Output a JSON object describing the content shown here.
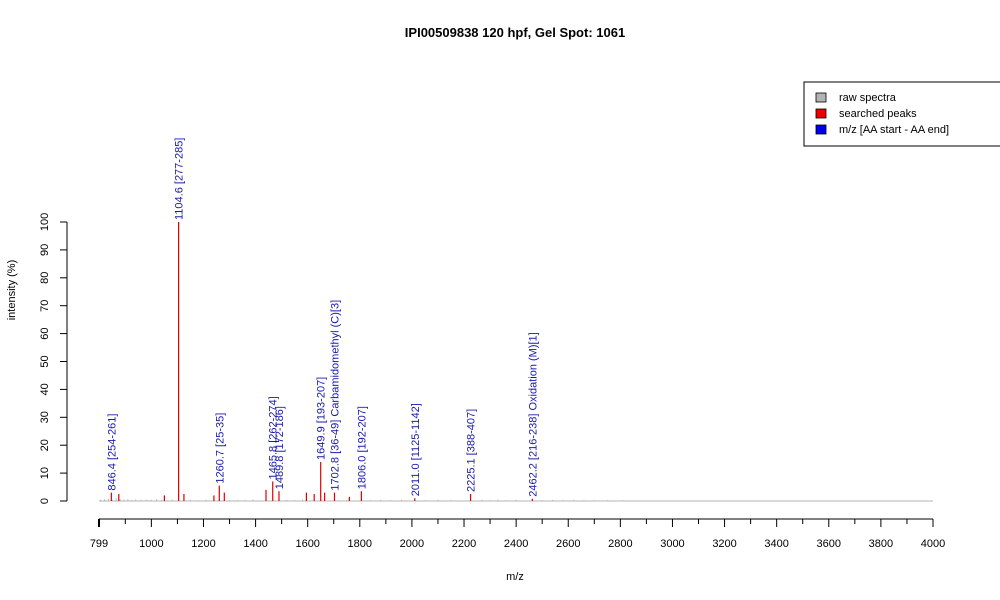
{
  "chart_data": {
    "type": "bar",
    "title": "IPI00509838  120 hpf, Gel Spot: 1061",
    "xlabel": "m/z",
    "ylabel": "intensity (%)",
    "xlim": [
      799,
      4000
    ],
    "ylim": [
      0,
      100
    ],
    "x_ticks": [
      799,
      1000,
      1200,
      1400,
      1600,
      1800,
      2000,
      2200,
      2400,
      2600,
      2800,
      3000,
      3200,
      3400,
      3600,
      3800,
      4000
    ],
    "y_ticks": [
      0,
      10,
      20,
      30,
      40,
      50,
      60,
      70,
      80,
      90,
      100
    ],
    "colors": {
      "raw": "#b4b4b4",
      "searched": "#dd0000",
      "annotation": "#1a1aaa",
      "axis": "#000000"
    },
    "legend": {
      "position": "top-right",
      "entries": [
        {
          "label": "raw spectra",
          "color": "#b4b4b4"
        },
        {
          "label": "searched peaks",
          "color": "#ee0000"
        },
        {
          "label": "m/z [AA start - AA end]",
          "color": "#0000ee"
        }
      ]
    },
    "series": [
      {
        "name": "raw spectra",
        "x": [
          805,
          820,
          835,
          850,
          865,
          880,
          895,
          910,
          925,
          940,
          960,
          980,
          1000,
          1020,
          1040,
          1060,
          1080,
          1150,
          1180,
          1210,
          1300,
          1330,
          1360,
          1390,
          1520,
          1550,
          1580,
          1720,
          1750,
          1840,
          1880,
          1920,
          1960,
          2050,
          2100,
          2150,
          2270,
          2300,
          2330,
          2360,
          2400,
          2500,
          2540,
          2580,
          2620,
          2660,
          2700,
          2750,
          2810
        ],
        "values": [
          0.5,
          0.6,
          0.8,
          0.5,
          0.9,
          0.7,
          0.5,
          0.6,
          0.4,
          0.5,
          0.4,
          0.5,
          0.4,
          0.6,
          0.4,
          0.3,
          0.5,
          0.4,
          0.3,
          0.4,
          0.3,
          0.4,
          0.3,
          0.5,
          0.4,
          0.3,
          0.5,
          0.3,
          0.4,
          0.3,
          0.4,
          0.3,
          0.4,
          0.3,
          0.4,
          0.3,
          0.4,
          0.3,
          0.5,
          0.3,
          0.4,
          0.3,
          0.4,
          0.3,
          0.4,
          0.3,
          0.3,
          0.3,
          0.3
        ]
      },
      {
        "name": "searched peaks",
        "x": [
          846.4,
          875,
          1050,
          1104.6,
          1125,
          1240,
          1260.7,
          1280,
          1440,
          1465.8,
          1489.8,
          1595,
          1625,
          1649.9,
          1665,
          1702.8,
          1760,
          1806.0,
          2011.0,
          2225.1,
          2462.2
        ],
        "values": [
          3,
          2.5,
          2,
          100,
          2.5,
          2,
          5.5,
          3,
          4,
          7,
          3.5,
          3,
          2.5,
          14,
          3,
          3,
          1.5,
          3.5,
          1,
          2.5,
          0.8
        ]
      }
    ],
    "annotations": [
      {
        "x": 846.4,
        "y": 3,
        "text": "846.4 [254-261]"
      },
      {
        "x": 1104.6,
        "y": 100,
        "text": "1104.6 [277-285]"
      },
      {
        "x": 1260.7,
        "y": 5.5,
        "text": "1260.7 [25-35]"
      },
      {
        "x": 1465.8,
        "y": 7,
        "text": "1465.8 [262-274]"
      },
      {
        "x": 1489.8,
        "y": 3.5,
        "text": "1489.8 [172-186]"
      },
      {
        "x": 1649.9,
        "y": 14,
        "text": "1649.9 [193-207]"
      },
      {
        "x": 1702.8,
        "y": 3,
        "text": "1702.8 [36-49] Carbamidomethyl (C)[3]"
      },
      {
        "x": 1806.0,
        "y": 3.5,
        "text": "1806.0 [192-207]"
      },
      {
        "x": 2011.0,
        "y": 1,
        "text": "2011.0 [1125-1142]"
      },
      {
        "x": 2225.1,
        "y": 2.5,
        "text": "2225.1 [388-407]"
      },
      {
        "x": 2462.2,
        "y": 0.8,
        "text": "2462.2 [216-238] Oxidation (M)[1]"
      }
    ]
  }
}
